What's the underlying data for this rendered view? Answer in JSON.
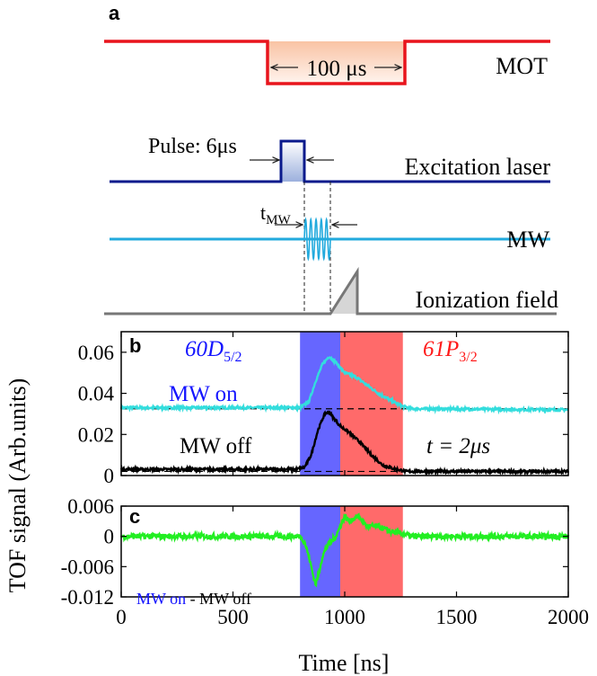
{
  "panel_labels": {
    "a": "a",
    "b": "b",
    "c": "c"
  },
  "timing": {
    "mot_label": "MOT",
    "mot_duration": "100 μs",
    "excitation_label": "Excitation laser",
    "pulse_label": "Pulse: 6μs",
    "mw_label": "MW",
    "tmw_main": "t",
    "tmw_sub": "MW",
    "ionization_label": "Ionization field"
  },
  "annotations": {
    "state_left_main": "60D",
    "state_left_sub": "5/2",
    "state_right_main": "61P",
    "state_right_sub": "3/2",
    "mw_on": "MW on",
    "mw_off": "MW off",
    "time_label": "t = 2μs",
    "diff_on": "MW on",
    "diff_mid": " - ",
    "diff_off": "MW off"
  },
  "colors": {
    "mot_red": "#e8141c",
    "excitation_navy": "#0a1a8c",
    "mw_cyan": "#22aadd",
    "ion_gray": "#777777",
    "blue_region": "#6666ff",
    "red_region": "#ff6a6a",
    "mw_on_trace": "#33dddd",
    "mw_off_trace": "#000000",
    "diff_trace": "#22ee22",
    "state_blue": "#1414ff",
    "state_red": "#ff1a1a"
  },
  "chart_data": [
    {
      "type": "line",
      "panel": "b",
      "xlim": [
        0,
        2000
      ],
      "ylim": [
        0,
        0.07
      ],
      "yticks": [
        "0",
        "0.02",
        "0.04",
        "0.06"
      ],
      "ytick_values": [
        0,
        0.02,
        0.04,
        0.06
      ],
      "shaded_regions": [
        {
          "x0": 800,
          "x1": 980,
          "color": "blue"
        },
        {
          "x0": 980,
          "x1": 1260,
          "color": "red"
        }
      ],
      "reference_lines": [
        0.0325,
        0.002
      ],
      "series": [
        {
          "name": "MW on",
          "x": [
            0,
            700,
            800,
            840,
            870,
            900,
            930,
            960,
            1000,
            1050,
            1100,
            1150,
            1200,
            1250,
            1300,
            2000
          ],
          "y": [
            0.033,
            0.033,
            0.033,
            0.036,
            0.046,
            0.054,
            0.058,
            0.055,
            0.05,
            0.048,
            0.044,
            0.04,
            0.037,
            0.034,
            0.0325,
            0.032
          ]
        },
        {
          "name": "MW off",
          "x": [
            0,
            780,
            820,
            850,
            880,
            910,
            930,
            950,
            980,
            1020,
            1070,
            1120,
            1170,
            1230,
            1280,
            2000
          ],
          "y": [
            0.003,
            0.003,
            0.004,
            0.01,
            0.022,
            0.03,
            0.031,
            0.028,
            0.024,
            0.021,
            0.016,
            0.01,
            0.005,
            0.003,
            0.002,
            0.002
          ]
        }
      ]
    },
    {
      "type": "line",
      "panel": "c",
      "xlim": [
        0,
        2000
      ],
      "xticks": [
        "0",
        "500",
        "1000",
        "1500",
        "2000"
      ],
      "xtick_values": [
        0,
        500,
        1000,
        1500,
        2000
      ],
      "ylim": [
        -0.012,
        0.006
      ],
      "yticks": [
        "0.006",
        "0",
        "-0.006",
        "-0.012"
      ],
      "ytick_values": [
        0.006,
        0,
        -0.006,
        -0.012
      ],
      "xlabel": "Time [ns]",
      "ylabel": "TOF signal (Arb.units)",
      "shaded_regions": [
        {
          "x0": 800,
          "x1": 980,
          "color": "blue"
        },
        {
          "x0": 980,
          "x1": 1260,
          "color": "red"
        }
      ],
      "series": [
        {
          "name": "MW on - MW off",
          "x": [
            0,
            800,
            820,
            840,
            860,
            870,
            880,
            900,
            920,
            940,
            960,
            980,
            1000,
            1020,
            1060,
            1100,
            1150,
            1200,
            1260,
            1300,
            2000
          ],
          "y": [
            0,
            0,
            -0.001,
            -0.004,
            -0.008,
            -0.0095,
            -0.008,
            -0.004,
            -0.002,
            -0.001,
            0,
            0.002,
            0.004,
            0.003,
            0.004,
            0.002,
            0.002,
            0.001,
            0.0005,
            0,
            0
          ]
        }
      ]
    }
  ]
}
